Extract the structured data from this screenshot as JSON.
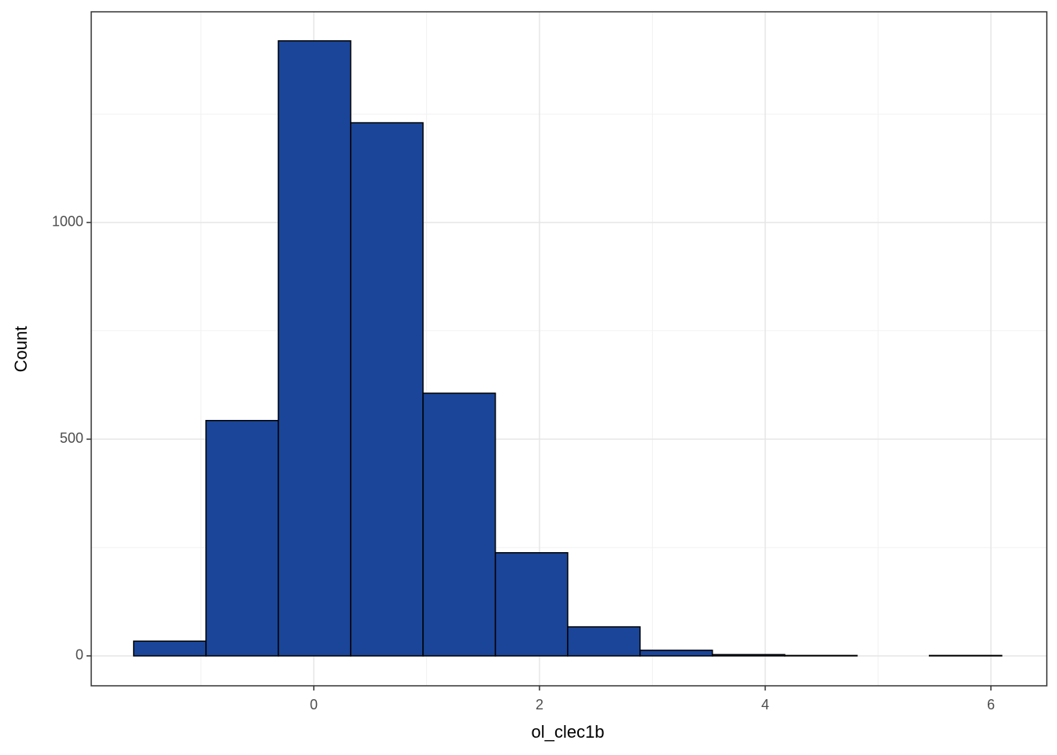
{
  "chart_data": {
    "type": "histogram",
    "x_label": "ol_clec1b",
    "y_label": "Count",
    "bins": [
      -1.596,
      -0.955,
      -0.314,
      0.327,
      0.968,
      1.609,
      2.25,
      2.891,
      3.532,
      4.173,
      4.814,
      5.455,
      6.096
    ],
    "values": [
      34,
      543,
      1419,
      1230,
      606,
      238,
      67,
      13,
      3,
      1,
      0,
      1
    ],
    "color": "#1a4599",
    "edge_color": "#000000",
    "xlim": [
      -1.972,
      6.495
    ],
    "ylim": [
      -69,
      1486
    ],
    "xticks": [
      0,
      2,
      4,
      6
    ],
    "yticks": [
      0,
      500,
      1000
    ],
    "x_minor_grid": [
      -1,
      1,
      3,
      5
    ],
    "y_minor_grid": [
      250,
      750,
      1250
    ],
    "grid": true
  }
}
